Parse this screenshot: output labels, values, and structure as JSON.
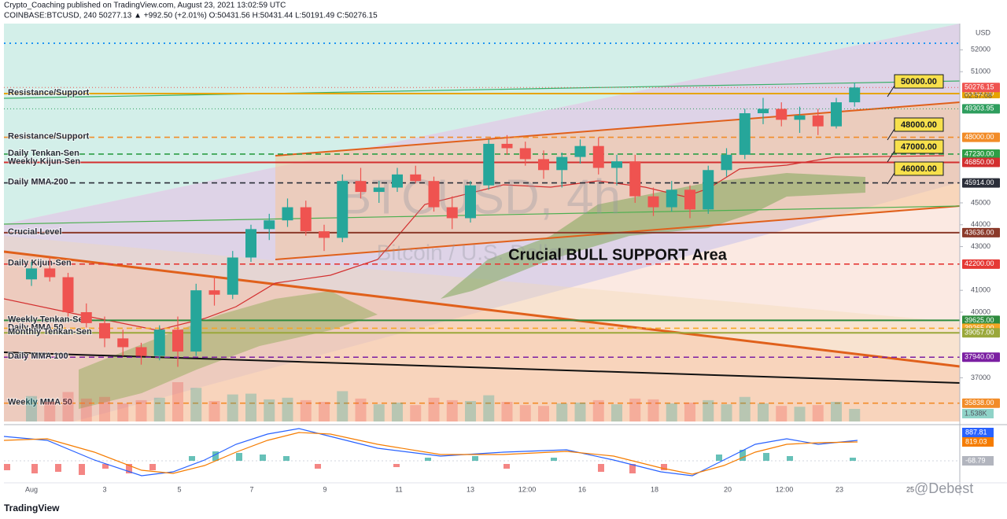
{
  "chart_data": {
    "type": "candlestick",
    "header": "Crypto_Coaching published on TradingView.com, August 23, 2021 13:02:59 UTC",
    "symbol_line": "COINBASE:BTCUSD, 240  50277.13  ▲ +992.50 (+2.01%)  O:50431.56  H:50431.44  L:50191.49  C:50276.15",
    "watermark": "BTCUSD, 4h",
    "watermark_sub": "Bitcoin / U.S. Dollar",
    "annotation": "Crucial BULL SUPPORT Area",
    "axis_unit": "USD",
    "logo": "TradingView",
    "credit": "@Debest",
    "countdown": "02:57:08",
    "ylim": [
      35000,
      53200
    ],
    "yticks": [
      52000,
      51000,
      45000,
      44000,
      43000,
      41000,
      40000,
      37000
    ],
    "categories": [
      "Aug",
      "3",
      "5",
      "7",
      "9",
      "11",
      "13",
      "12:00",
      "16",
      "18",
      "20",
      "12:00",
      "23",
      "25"
    ],
    "colors": {
      "up": "#26a69a",
      "down": "#ef5350"
    },
    "ohlc": [
      [
        41500,
        42300,
        41200,
        42000
      ],
      [
        42000,
        42500,
        41400,
        41600
      ],
      [
        41600,
        41800,
        39800,
        40000
      ],
      [
        40000,
        40400,
        39300,
        39500
      ],
      [
        39500,
        39800,
        38400,
        38800
      ],
      [
        38800,
        39200,
        38000,
        38400
      ],
      [
        38400,
        38600,
        37600,
        38000
      ],
      [
        38000,
        39400,
        37800,
        39200
      ],
      [
        39200,
        39800,
        37500,
        38200
      ],
      [
        38200,
        41300,
        38000,
        41000
      ],
      [
        41000,
        41600,
        40300,
        40800
      ],
      [
        40800,
        42800,
        40600,
        42500
      ],
      [
        42500,
        44000,
        42300,
        43800
      ],
      [
        43800,
        44500,
        43300,
        44200
      ],
      [
        44200,
        45200,
        43900,
        44800
      ],
      [
        44800,
        45100,
        43500,
        43700
      ],
      [
        43700,
        44000,
        42800,
        43400
      ],
      [
        43400,
        46300,
        43200,
        46000
      ],
      [
        46000,
        46600,
        45200,
        45500
      ],
      [
        45500,
        46000,
        45000,
        45700
      ],
      [
        45700,
        46600,
        45500,
        46300
      ],
      [
        46300,
        46700,
        45900,
        46000
      ],
      [
        46000,
        46200,
        44600,
        44800
      ],
      [
        44800,
        45300,
        43800,
        44300
      ],
      [
        44300,
        46000,
        44100,
        45800
      ],
      [
        45800,
        47900,
        45600,
        47700
      ],
      [
        47700,
        48100,
        47200,
        47500
      ],
      [
        47500,
        47800,
        46700,
        47000
      ],
      [
        47000,
        47400,
        46100,
        46500
      ],
      [
        46500,
        47300,
        45700,
        47100
      ],
      [
        47100,
        47900,
        46800,
        47600
      ],
      [
        47600,
        48000,
        46300,
        46600
      ],
      [
        46600,
        47200,
        45800,
        46900
      ],
      [
        46900,
        47200,
        45000,
        45300
      ],
      [
        45300,
        45700,
        44400,
        44800
      ],
      [
        44800,
        46000,
        44600,
        45600
      ],
      [
        45600,
        45800,
        44300,
        44700
      ],
      [
        44700,
        46700,
        44500,
        46500
      ],
      [
        46500,
        47500,
        46200,
        47200
      ],
      [
        47200,
        49300,
        47000,
        49100
      ],
      [
        49100,
        49800,
        48600,
        49300
      ],
      [
        49300,
        49600,
        48500,
        48800
      ],
      [
        48800,
        49400,
        48200,
        49000
      ],
      [
        49000,
        49300,
        48100,
        48500
      ],
      [
        48500,
        49800,
        48400,
        49600
      ],
      [
        49600,
        50500,
        49400,
        50276.15
      ]
    ],
    "volume": [
      3.1,
      2.4,
      3.6,
      2.8,
      3.0,
      2.2,
      2.6,
      2.9,
      4.8,
      4.1,
      2.5,
      3.3,
      3.4,
      2.7,
      2.9,
      2.6,
      2.4,
      3.7,
      2.8,
      2.1,
      2.3,
      2.0,
      2.9,
      2.6,
      2.5,
      3.2,
      2.4,
      2.0,
      1.9,
      2.2,
      2.3,
      2.6,
      2.1,
      2.8,
      2.7,
      2.2,
      2.3,
      2.6,
      2.1,
      3.0,
      2.2,
      1.9,
      1.8,
      2.0,
      2.4,
      1.538
    ],
    "volume_label": {
      "value": 1.538,
      "label": "1.538K"
    },
    "levels": [
      {
        "name": "Resistance/Support",
        "value": 50000,
        "label": "50000.00",
        "color": "#e6a400",
        "style": "solid"
      },
      {
        "name": "Resistance/Support",
        "value": 48000,
        "label": "48000.00",
        "color": "#f28c28",
        "style": "dashed"
      },
      {
        "name": "Daily Tenkan-Sen",
        "value": 47230,
        "label": "47230.00",
        "color": "#2e9e46",
        "style": "dashed",
        "text_color": "#2e9e46"
      },
      {
        "name": "Weekly Kijun-Sen",
        "value": 46850,
        "label": "46850.00",
        "color": "#d32f2f",
        "style": "solid"
      },
      {
        "name": "Daily MMA 200",
        "value": 45914,
        "label": "45914.00",
        "color": "#2a2e39",
        "style": "dashed"
      },
      {
        "name": "Crucial Level",
        "value": 43636,
        "label": "43636.00",
        "color": "#8b3a2a",
        "style": "solid"
      },
      {
        "name": "Daily Kijun-Sen",
        "value": 42200,
        "label": "42200.00",
        "color": "#e53935",
        "style": "dashed"
      },
      {
        "name": "Weekly Tenkan-Sen",
        "value": 39625,
        "label": "39625.00",
        "color": "#2e8b3e",
        "style": "solid"
      },
      {
        "name": "Daily MMA 50",
        "value": 39265,
        "label": "39265.00",
        "color": "#f5a623",
        "style": "dashed"
      },
      {
        "name": "Monthly Tenkan-Sen",
        "value": 39057,
        "label": "39057.00",
        "color": "#9aa83a",
        "style": "solid"
      },
      {
        "name": "Daily MMA 100",
        "value": 37940,
        "label": "37940.00",
        "color": "#7b1fa2",
        "style": "dashed"
      },
      {
        "name": "Weekly MMA 50",
        "value": 35838,
        "label": "35838.00",
        "color": "#f28c28",
        "style": "dashed"
      }
    ],
    "tags": [
      {
        "value": 50276.15,
        "label": "50276.15",
        "color": "#ef5350"
      },
      {
        "value": 49303.95,
        "label": "49303.95",
        "color": "#2e9e5e"
      }
    ],
    "callouts": [
      "50000.00",
      "48000.00",
      "47000.00",
      "46000.00"
    ],
    "macd_labels": [
      {
        "value": 887.81,
        "label": "887.81",
        "color": "#2962ff"
      },
      {
        "value": 819.03,
        "label": "819.03",
        "color": "#f57c00"
      },
      {
        "value": -68.79,
        "label": "-68.79",
        "color": "#b2b5be"
      }
    ]
  }
}
